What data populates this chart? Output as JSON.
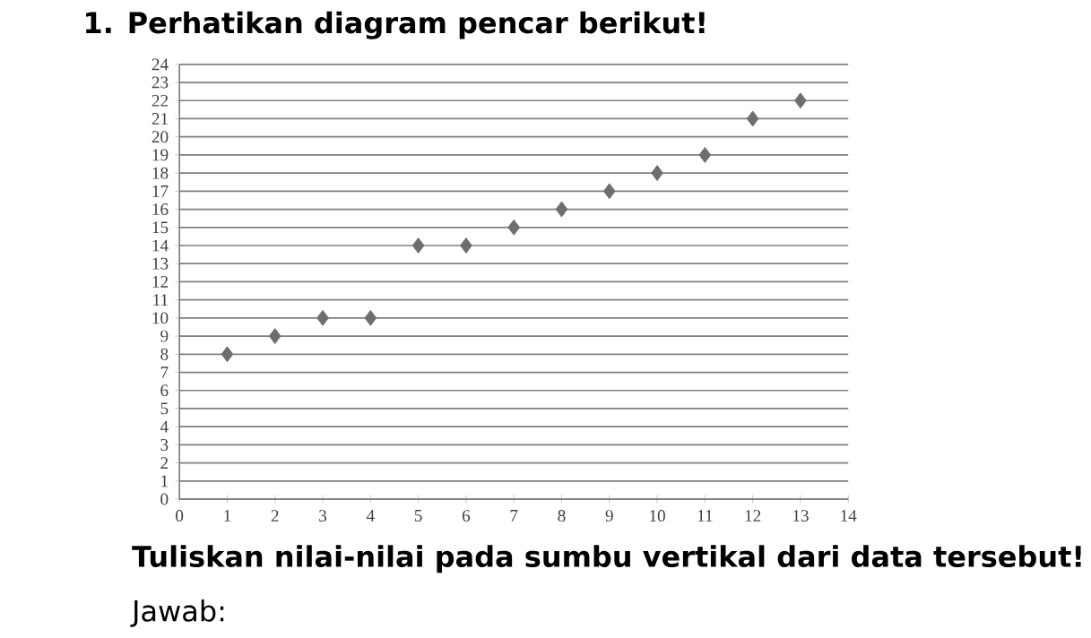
{
  "chart_data": {
    "type": "scatter",
    "title": "1. Perhatikan diagram pencar berikut!",
    "x": [
      1,
      2,
      3,
      4,
      5,
      6,
      7,
      8,
      9,
      10,
      11,
      12,
      13
    ],
    "values": [
      8,
      9,
      10,
      10,
      14,
      14,
      15,
      16,
      17,
      18,
      19,
      21,
      22
    ],
    "color": "#6e6e6e",
    "marker": "diamond",
    "xlim": [
      0,
      14
    ],
    "xticks": [
      0,
      1,
      2,
      3,
      4,
      5,
      6,
      7,
      8,
      9,
      10,
      11,
      12,
      13,
      14
    ],
    "ylim": [
      0,
      24
    ],
    "yticks": [
      0,
      1,
      2,
      3,
      4,
      5,
      6,
      7,
      8,
      9,
      10,
      11,
      12,
      13,
      14,
      15,
      16,
      17,
      18,
      19,
      20,
      21,
      22,
      23,
      24
    ],
    "grid": "y",
    "annotations": [
      "Tuliskan nilai-nilai pada sumbu vertikal dari data tersebut!",
      "Jawab:"
    ]
  }
}
